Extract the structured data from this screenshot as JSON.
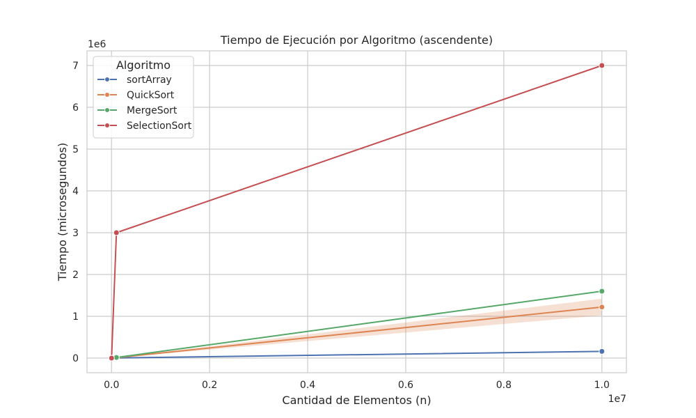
{
  "chart_data": {
    "type": "line",
    "title": "Tiempo de Ejecución por Algoritmo (ascendente)",
    "xlabel": "Cantidad de Elementos (n)",
    "ylabel": "Tiempo (microsegundos)",
    "x_offset_label": "1e7",
    "y_offset_label": "1e6",
    "x_scale": 10000000,
    "y_scale": 1000000,
    "xlim": [
      -500000,
      10500000
    ],
    "ylim": [
      -350000,
      7350000
    ],
    "xticks": [
      0,
      2000000,
      4000000,
      6000000,
      8000000,
      10000000
    ],
    "xtick_labels": [
      "0.0",
      "0.2",
      "0.4",
      "0.6",
      "0.8",
      "1.0"
    ],
    "yticks": [
      0,
      1000000,
      2000000,
      3000000,
      4000000,
      5000000,
      6000000,
      7000000
    ],
    "ytick_labels": [
      "0",
      "1",
      "2",
      "3",
      "4",
      "5",
      "6",
      "7"
    ],
    "grid": true,
    "legend_title": "Algoritmo",
    "legend_position": "top-left",
    "series": [
      {
        "name": "sortArray",
        "color": "#4c72b0",
        "x": [
          1000,
          100000,
          10000000
        ],
        "y": [
          0,
          4000,
          160000
        ]
      },
      {
        "name": "QuickSort",
        "color": "#dd8452",
        "x": [
          1000,
          100000,
          10000000
        ],
        "y": [
          0,
          10000,
          1220000
        ],
        "ci_lower": [
          0,
          8000,
          1020000
        ],
        "ci_upper": [
          0,
          12000,
          1420000
        ]
      },
      {
        "name": "MergeSort",
        "color": "#55a868",
        "x": [
          1000,
          100000,
          10000000
        ],
        "y": [
          0,
          15000,
          1600000
        ]
      },
      {
        "name": "SelectionSort",
        "color": "#c44e52",
        "x": [
          1000,
          100000,
          10000000
        ],
        "y": [
          0,
          3000000,
          7000000
        ]
      }
    ]
  }
}
